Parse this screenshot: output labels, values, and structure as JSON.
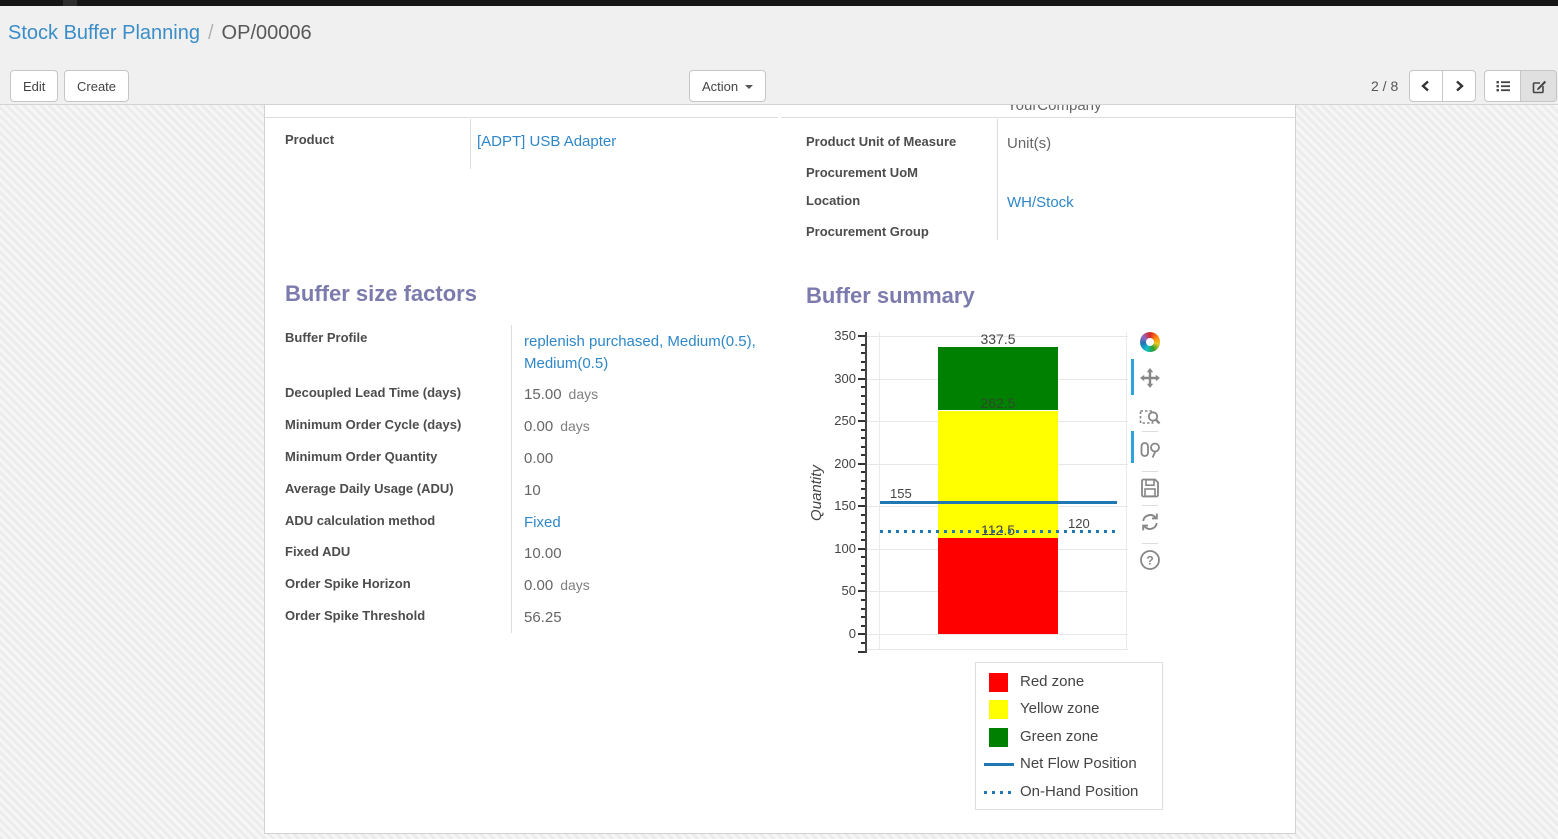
{
  "breadcrumb": {
    "parent": "Stock Buffer Planning",
    "separator": "/",
    "current": "OP/00006"
  },
  "toolbar": {
    "edit_label": "Edit",
    "create_label": "Create",
    "action_label": "Action",
    "pager": "2 / 8"
  },
  "form": {
    "clipped_top_value": "YourCompany",
    "product_group_left": {
      "fields": [
        {
          "name": "product",
          "label": "Product",
          "value": "[ADPT] USB Adapter",
          "link": true
        }
      ]
    },
    "product_group_right": {
      "fields": [
        {
          "name": "product-unit-of-measure",
          "label": "Product Unit of Measure",
          "value": "Unit(s)"
        },
        {
          "name": "procurement-uom",
          "label": "Procurement UoM",
          "value": ""
        },
        {
          "name": "location",
          "label": "Location",
          "value": "WH/Stock",
          "link": true
        },
        {
          "name": "procurement-group",
          "label": "Procurement Group",
          "value": ""
        }
      ]
    },
    "buffer_factors": {
      "title": "Buffer size factors",
      "fields": [
        {
          "name": "buffer-profile",
          "label": "Buffer Profile",
          "value": "replenish purchased, Medium(0.5), Medium(0.5)",
          "link": true,
          "wrap": true
        },
        {
          "name": "decoupled-lead-time",
          "label": "Decoupled Lead Time (days)",
          "value": "15.00",
          "unit": "days"
        },
        {
          "name": "minimum-order-cycle",
          "label": "Minimum Order Cycle (days)",
          "value": "0.00",
          "unit": "days"
        },
        {
          "name": "minimum-order-quantity",
          "label": "Minimum Order Quantity",
          "value": "0.00"
        },
        {
          "name": "average-daily-usage",
          "label": "Average Daily Usage (ADU)",
          "value": "10"
        },
        {
          "name": "adu-calculation-method",
          "label": "ADU calculation method",
          "value": "Fixed",
          "link": true
        },
        {
          "name": "fixed-adu",
          "label": "Fixed ADU",
          "value": "10.00"
        },
        {
          "name": "order-spike-horizon",
          "label": "Order Spike Horizon",
          "value": "0.00",
          "unit": "days"
        },
        {
          "name": "order-spike-threshold",
          "label": "Order Spike Threshold",
          "value": "56.25"
        }
      ]
    },
    "buffer_summary_title": "Buffer summary"
  },
  "chart_toolbar": {
    "icons": [
      "plotly-logo",
      "pan",
      "box-zoom",
      "compare-hover",
      "save",
      "reset-axes",
      "help"
    ]
  },
  "chart_data": {
    "type": "bar",
    "title": "Buffer summary",
    "xlabel": "",
    "ylabel": "Quantity",
    "ylim": [
      0,
      350
    ],
    "ytick_step": 50,
    "ytick_minor_step": 10,
    "grid": true,
    "series": [
      {
        "name": "Red zone",
        "color": "#ff0000",
        "range": [
          0,
          112.5
        ]
      },
      {
        "name": "Yellow zone",
        "color": "#ffff00",
        "range": [
          112.5,
          262.5
        ]
      },
      {
        "name": "Green zone",
        "color": "#008000",
        "range": [
          262.5,
          337.5
        ]
      }
    ],
    "value_labels": [
      {
        "text": "337.5",
        "value": 337.5
      },
      {
        "text": "262.5",
        "value": 262.5,
        "muted": true
      },
      {
        "text": "112.5",
        "value": 112.5
      }
    ],
    "reference_lines": [
      {
        "name": "Net Flow Position",
        "label": "155",
        "value": 155,
        "style": "solid",
        "color": "#1f77b4",
        "label_side": "left"
      },
      {
        "name": "On-Hand Position",
        "label": "120",
        "value": 120,
        "style": "dotted",
        "color": "#1f77b4",
        "label_side": "right"
      }
    ],
    "legend_position": "bottom-right",
    "legend": [
      {
        "label": "Red zone",
        "swatch": "box",
        "color": "#ff0000"
      },
      {
        "label": "Yellow zone",
        "swatch": "box",
        "color": "#ffff00"
      },
      {
        "label": "Green zone",
        "swatch": "box",
        "color": "#008000"
      },
      {
        "label": "Net Flow Position",
        "swatch": "line",
        "color": "#1f77b4"
      },
      {
        "label": "On-Hand Position",
        "swatch": "dots",
        "color": "#1f77b4"
      }
    ]
  }
}
